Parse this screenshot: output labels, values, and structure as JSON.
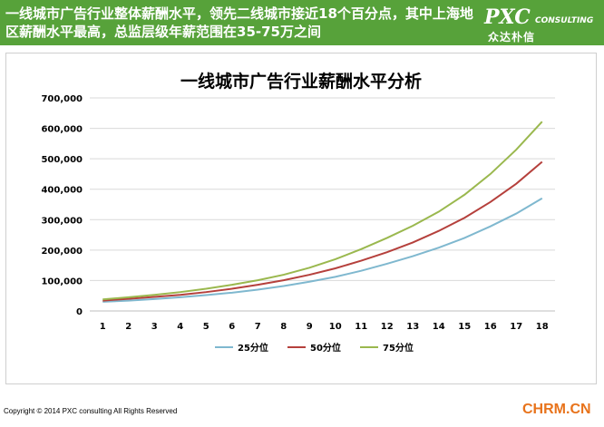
{
  "header": {
    "headline": "一线城市广告行业整体薪酬水平，领先二线城市接近18个百分点，其中上海地区薪酬水平最高，总监层级年薪范围在35-75万之间",
    "banner_color": "#57a23a",
    "logo": {
      "brand": "PXC",
      "sub": "CONSULTING",
      "cn": "众达朴信"
    }
  },
  "chart_data": {
    "type": "line",
    "title": "一线城市广告行业薪酬水平分析",
    "xlabel": "",
    "ylabel": "",
    "categories": [
      "1",
      "2",
      "3",
      "4",
      "5",
      "6",
      "7",
      "8",
      "9",
      "10",
      "11",
      "12",
      "13",
      "14",
      "15",
      "16",
      "17",
      "18"
    ],
    "ylim": [
      0,
      700000
    ],
    "yticks": [
      "0",
      "100,000",
      "200,000",
      "300,000",
      "400,000",
      "500,000",
      "600,000",
      "700,000"
    ],
    "ytick_values": [
      0,
      100000,
      200000,
      300000,
      400000,
      500000,
      600000,
      700000
    ],
    "grid": true,
    "legend_position": "bottom",
    "series": [
      {
        "name": "25分位",
        "color": "#7fb8cf",
        "values": [
          30000,
          34000,
          39000,
          45000,
          52000,
          60000,
          70000,
          82000,
          96000,
          112000,
          132000,
          155000,
          180000,
          208000,
          240000,
          278000,
          320000,
          370000
        ]
      },
      {
        "name": "50分位",
        "color": "#b5403c",
        "values": [
          34000,
          40000,
          46000,
          53000,
          62000,
          73000,
          86000,
          101000,
          119000,
          140000,
          165000,
          193000,
          225000,
          263000,
          306000,
          358000,
          418000,
          490000
        ]
      },
      {
        "name": "75分位",
        "color": "#9ab84e",
        "values": [
          38000,
          45000,
          53000,
          62000,
          73000,
          86000,
          101000,
          119000,
          142000,
          170000,
          203000,
          240000,
          280000,
          326000,
          382000,
          450000,
          530000,
          622000
        ]
      }
    ]
  },
  "footer": {
    "copyright": "Copyright © 2014  PXC consulting All Rights Reserved",
    "site": "CHRM.CN"
  }
}
